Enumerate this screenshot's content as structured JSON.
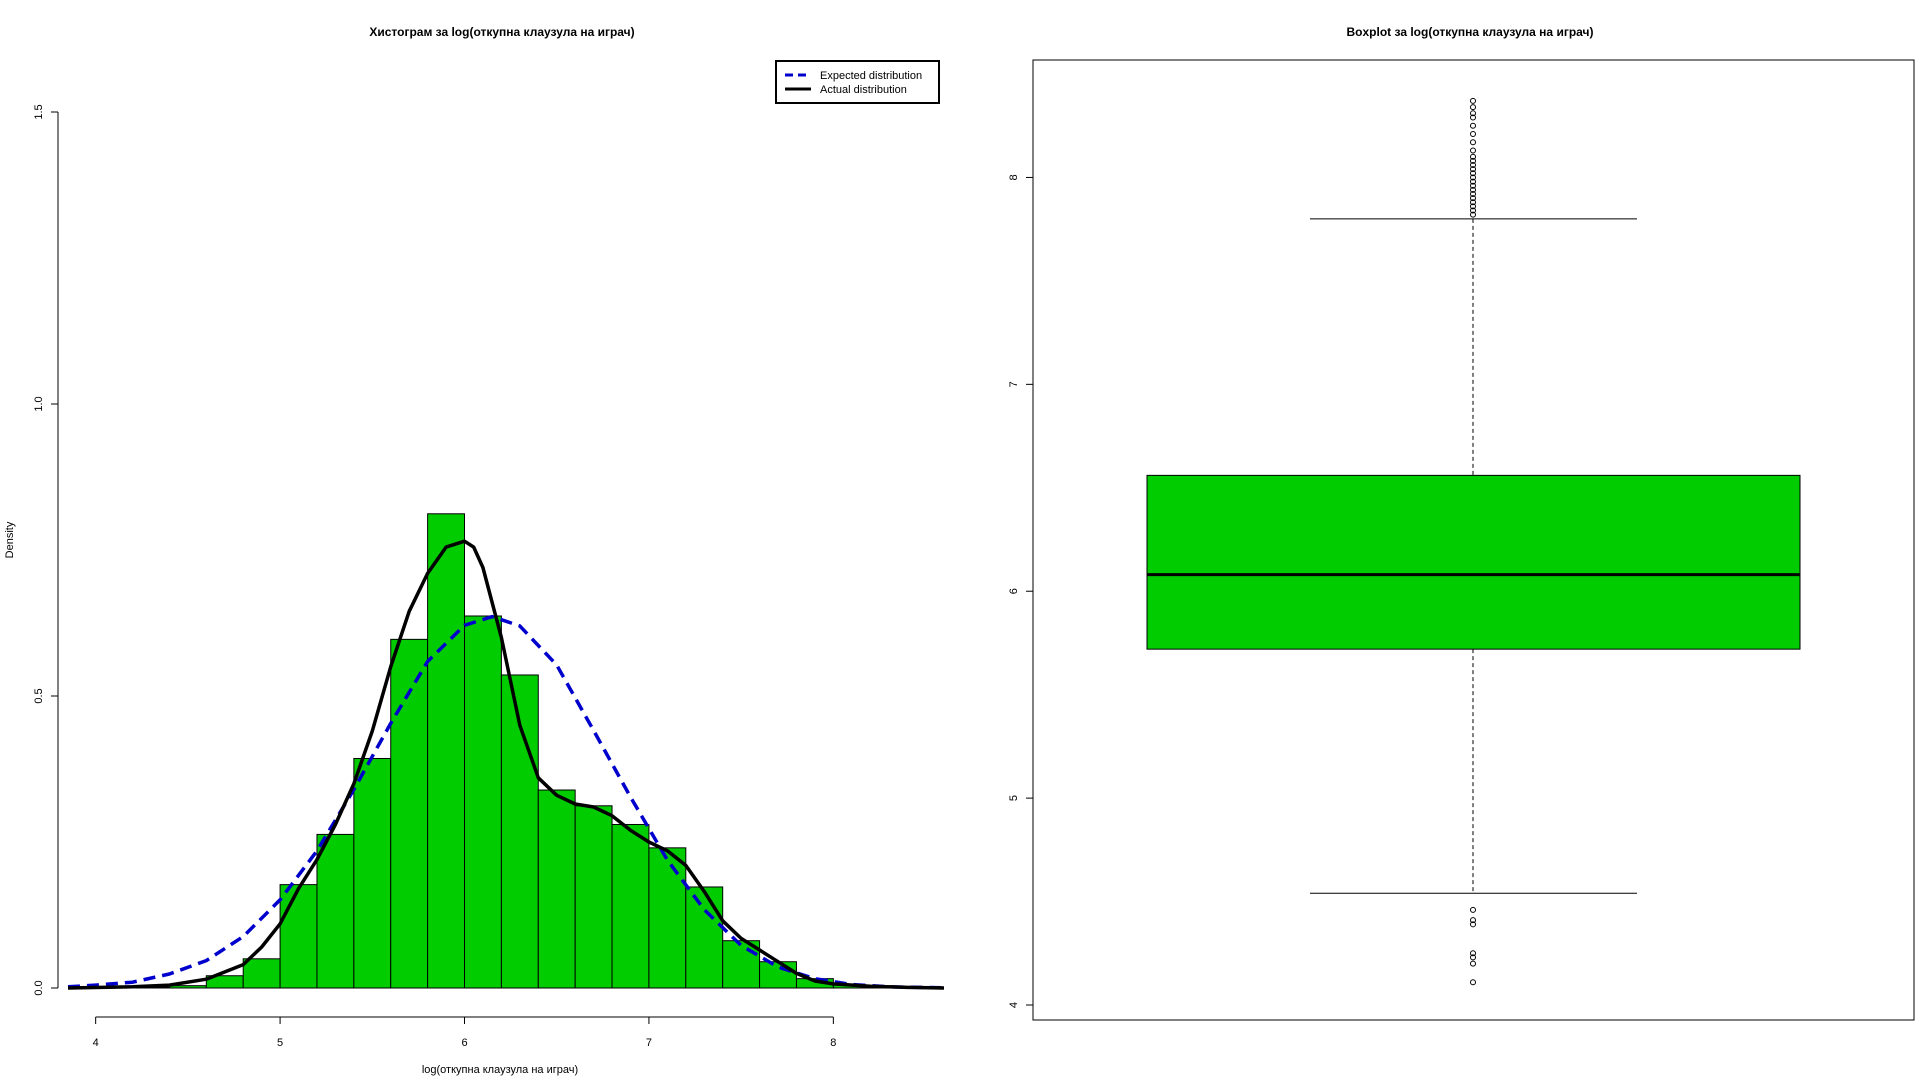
{
  "chart_data": [
    {
      "type": "histogram",
      "title": "Хистограм за  log(откупна клаузула на играч)",
      "xlabel": "log(откупна клаузула на играч)",
      "ylabel": "Density",
      "xlim": [
        3.85,
        8.6
      ],
      "ylim": [
        0,
        1.5
      ],
      "xticks": [
        "4",
        "5",
        "6",
        "7",
        "8"
      ],
      "yticks": [
        "0.0",
        "0.5",
        "1.0",
        "1.5"
      ],
      "bins": [
        {
          "from": 4.2,
          "to": 4.4,
          "density": 0.001
        },
        {
          "from": 4.4,
          "to": 4.6,
          "density": 0.004
        },
        {
          "from": 4.6,
          "to": 4.8,
          "density": 0.021
        },
        {
          "from": 4.8,
          "to": 5.0,
          "density": 0.05
        },
        {
          "from": 5.0,
          "to": 5.2,
          "density": 0.177
        },
        {
          "from": 5.2,
          "to": 5.4,
          "density": 0.263
        },
        {
          "from": 5.4,
          "to": 5.6,
          "density": 0.393
        },
        {
          "from": 5.6,
          "to": 5.8,
          "density": 0.597
        },
        {
          "from": 5.8,
          "to": 6.0,
          "density": 0.812
        },
        {
          "from": 6.0,
          "to": 6.2,
          "density": 0.637
        },
        {
          "from": 6.2,
          "to": 6.4,
          "density": 0.536
        },
        {
          "from": 6.4,
          "to": 6.6,
          "density": 0.339
        },
        {
          "from": 6.6,
          "to": 6.8,
          "density": 0.312
        },
        {
          "from": 6.8,
          "to": 7.0,
          "density": 0.28
        },
        {
          "from": 7.0,
          "to": 7.2,
          "density": 0.24
        },
        {
          "from": 7.2,
          "to": 7.4,
          "density": 0.173
        },
        {
          "from": 7.4,
          "to": 7.6,
          "density": 0.081
        },
        {
          "from": 7.6,
          "to": 7.8,
          "density": 0.045
        },
        {
          "from": 7.8,
          "to": 8.0,
          "density": 0.016
        },
        {
          "from": 8.0,
          "to": 8.2,
          "density": 0.005
        },
        {
          "from": 8.2,
          "to": 8.4,
          "density": 0.002
        }
      ],
      "series": [
        {
          "name": "Expected distribution",
          "style": "dashed",
          "color": "#0000cc",
          "x": [
            3.85,
            4.0,
            4.2,
            4.4,
            4.6,
            4.8,
            5.0,
            5.2,
            5.4,
            5.6,
            5.8,
            6.0,
            6.15,
            6.3,
            6.5,
            6.7,
            6.9,
            7.1,
            7.3,
            7.5,
            7.7,
            7.9,
            8.1,
            8.3,
            8.6
          ],
          "y": [
            0.002,
            0.005,
            0.01,
            0.024,
            0.047,
            0.088,
            0.151,
            0.235,
            0.34,
            0.453,
            0.559,
            0.621,
            0.636,
            0.62,
            0.553,
            0.441,
            0.327,
            0.219,
            0.134,
            0.073,
            0.036,
            0.016,
            0.006,
            0.002,
            0.0004
          ]
        },
        {
          "name": "Actual distribution",
          "style": "solid",
          "color": "#000000",
          "x": [
            3.85,
            4.2,
            4.4,
            4.6,
            4.8,
            4.9,
            5.0,
            5.1,
            5.2,
            5.3,
            5.4,
            5.5,
            5.6,
            5.7,
            5.8,
            5.9,
            6.0,
            6.05,
            6.1,
            6.2,
            6.3,
            6.4,
            6.5,
            6.6,
            6.7,
            6.8,
            6.9,
            7.0,
            7.1,
            7.2,
            7.3,
            7.4,
            7.5,
            7.6,
            7.7,
            7.8,
            7.9,
            8.0,
            8.2,
            8.4,
            8.6
          ],
          "y": [
            0.0,
            0.002,
            0.005,
            0.015,
            0.04,
            0.07,
            0.11,
            0.17,
            0.22,
            0.28,
            0.35,
            0.44,
            0.55,
            0.645,
            0.71,
            0.755,
            0.765,
            0.755,
            0.72,
            0.6,
            0.45,
            0.36,
            0.33,
            0.315,
            0.31,
            0.295,
            0.27,
            0.25,
            0.235,
            0.21,
            0.165,
            0.115,
            0.085,
            0.065,
            0.045,
            0.025,
            0.012,
            0.007,
            0.003,
            0.001,
            0.0
          ]
        }
      ],
      "legend": "top-right",
      "bar_color": "#00cc00"
    },
    {
      "type": "boxplot",
      "title": "Boxplot за  log(откупна клаузула на играч)",
      "ylim": [
        4.0,
        8.5
      ],
      "yticks": [
        "4",
        "5",
        "6",
        "7",
        "8"
      ],
      "box_color": "#00cc00",
      "whisker_low": 4.54,
      "q1": 5.72,
      "median": 6.08,
      "q3": 6.56,
      "whisker_high": 7.8,
      "outliers": [
        4.11,
        4.2,
        4.23,
        4.25,
        4.39,
        4.41,
        4.46,
        7.82,
        7.84,
        7.86,
        7.88,
        7.9,
        7.92,
        7.94,
        7.96,
        7.98,
        8.0,
        8.02,
        8.04,
        8.06,
        8.08,
        8.1,
        8.13,
        8.17,
        8.21,
        8.25,
        8.29,
        8.31,
        8.34,
        8.37
      ]
    }
  ]
}
